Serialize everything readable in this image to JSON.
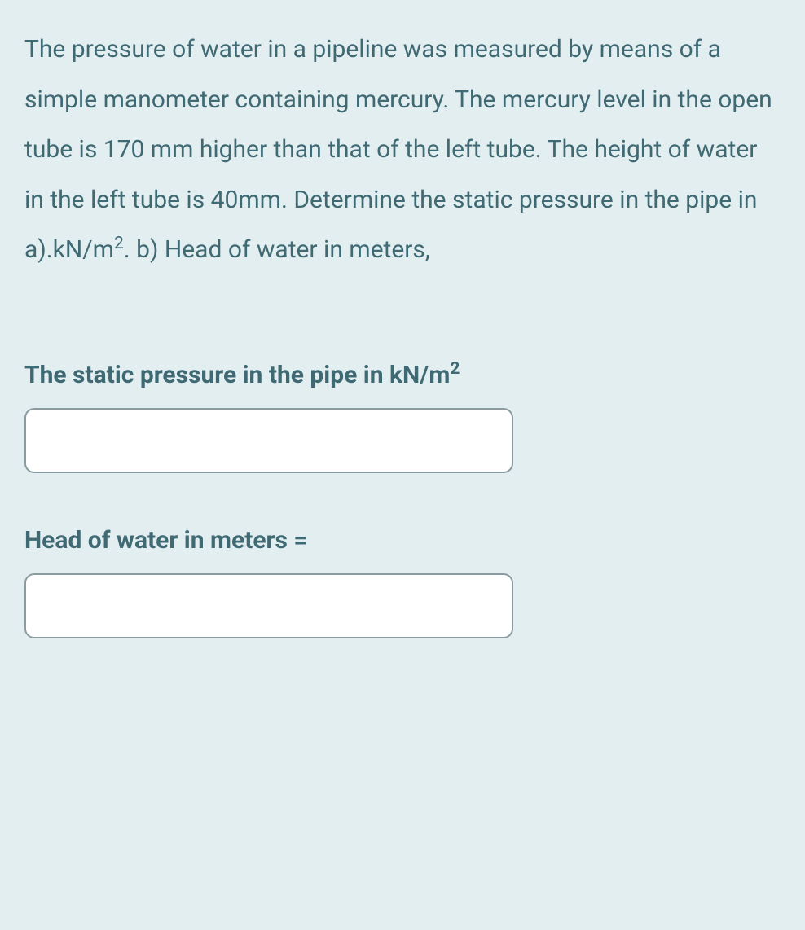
{
  "colors": {
    "background": "#e3eef0",
    "text": "#3f6a74",
    "input_border": "#8a9ca0",
    "input_bg": "#ffffff"
  },
  "typography": {
    "body_fontsize": 30,
    "line_height": 2.05,
    "label_fontweight": 700
  },
  "question": {
    "text_before_sup1": "The pressure of water in a pipeline was measured by means of a simple manometer containing mercury. The mercury level in the open tube is 170 mm higher than that of the left tube. The height of water in the left tube is 40mm. Determine the static pressure in the pipe in a).kN/m",
    "sup1": "2",
    "text_after_sup1": ".  b) Head of water in meters,"
  },
  "fields": [
    {
      "label_before_sup": "The static pressure in the pipe in kN/m",
      "label_sup": "2",
      "label_after_sup": "",
      "value": ""
    },
    {
      "label_before_sup": "Head of water in meters =",
      "label_sup": "",
      "label_after_sup": "",
      "value": ""
    }
  ]
}
